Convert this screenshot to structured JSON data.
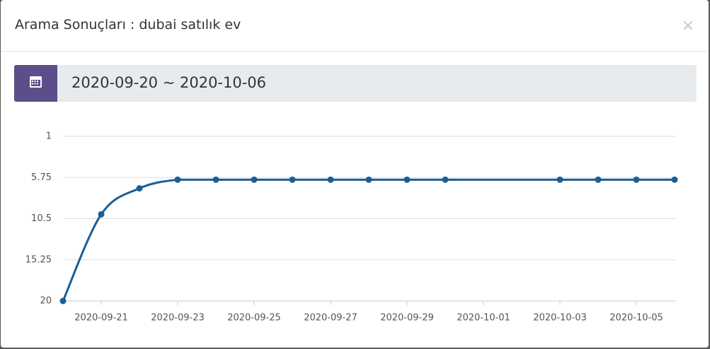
{
  "modal": {
    "title": "Arama Sonuçları : dubai satılık ev",
    "close": "×",
    "date_range": "2020-09-20 ~ 2020-10-06"
  },
  "chart_data": {
    "type": "line",
    "x": [
      "2020-09-20",
      "2020-09-21",
      "2020-09-22",
      "2020-09-23",
      "2020-09-24",
      "2020-09-25",
      "2020-09-26",
      "2020-09-27",
      "2020-09-28",
      "2020-09-29",
      "2020-09-30",
      "2020-10-03",
      "2020-10-04",
      "2020-10-05",
      "2020-10-06"
    ],
    "series": [
      {
        "color": "#1b5e96",
        "values": [
          20,
          10,
          7,
          6,
          6,
          6,
          6,
          6,
          6,
          6,
          6,
          6,
          6,
          6,
          6
        ]
      }
    ],
    "xlim": [
      "2020-09-20",
      "2020-10-06"
    ],
    "xticks": [
      "2020-09-21",
      "2020-09-23",
      "2020-09-25",
      "2020-09-27",
      "2020-09-29",
      "2020-10-01",
      "2020-10-03",
      "2020-10-05"
    ],
    "ylim": [
      20,
      1
    ],
    "yticks": [
      1,
      5.75,
      10.5,
      15.25,
      20
    ],
    "grid": true
  }
}
